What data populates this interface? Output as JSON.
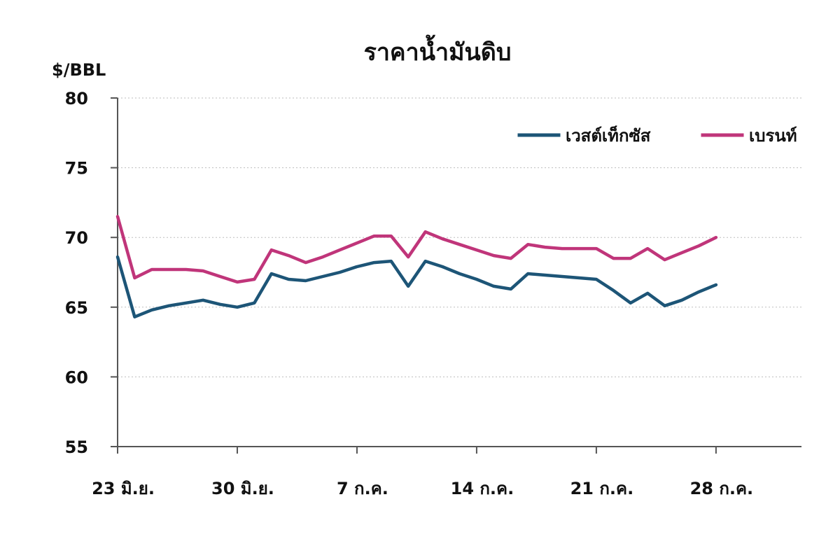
{
  "chart_data": {
    "type": "line",
    "title": "ราคาน้ำมันดิบ",
    "ylabel": "$/BBL",
    "ylim": [
      55,
      80
    ],
    "yticks": [
      55,
      60,
      65,
      70,
      75,
      80
    ],
    "x_range": [
      "2018-06-23",
      "2018-08-02"
    ],
    "xticks": [
      {
        "date": "2018-06-23",
        "label": "23 มิ.ย."
      },
      {
        "date": "2018-06-30",
        "label": "30 มิ.ย."
      },
      {
        "date": "2018-07-07",
        "label": "7 ก.ค."
      },
      {
        "date": "2018-07-14",
        "label": "14 ก.ค."
      },
      {
        "date": "2018-07-21",
        "label": "21 ก.ค."
      },
      {
        "date": "2018-07-28",
        "label": "28 ก.ค."
      }
    ],
    "grid": "horizontal",
    "legend_position": "top-right",
    "series": [
      {
        "name": "เวสต์เท็กซัส",
        "color": "#1d5577",
        "points": [
          {
            "x": "2018-06-23",
            "y": 68.6
          },
          {
            "x": "2018-06-24",
            "y": 64.3
          },
          {
            "x": "2018-06-25",
            "y": 64.8
          },
          {
            "x": "2018-06-26",
            "y": 65.1
          },
          {
            "x": "2018-06-27",
            "y": 65.3
          },
          {
            "x": "2018-06-28",
            "y": 65.5
          },
          {
            "x": "2018-06-29",
            "y": 65.2
          },
          {
            "x": "2018-06-30",
            "y": 65.0
          },
          {
            "x": "2018-07-01",
            "y": 65.3
          },
          {
            "x": "2018-07-02",
            "y": 67.4
          },
          {
            "x": "2018-07-03",
            "y": 67.0
          },
          {
            "x": "2018-07-04",
            "y": 66.9
          },
          {
            "x": "2018-07-05",
            "y": 67.2
          },
          {
            "x": "2018-07-06",
            "y": 67.5
          },
          {
            "x": "2018-07-07",
            "y": 67.9
          },
          {
            "x": "2018-07-08",
            "y": 68.2
          },
          {
            "x": "2018-07-09",
            "y": 68.3
          },
          {
            "x": "2018-07-10",
            "y": 66.5
          },
          {
            "x": "2018-07-11",
            "y": 68.3
          },
          {
            "x": "2018-07-12",
            "y": 67.9
          },
          {
            "x": "2018-07-13",
            "y": 67.4
          },
          {
            "x": "2018-07-14",
            "y": 67.0
          },
          {
            "x": "2018-07-15",
            "y": 66.5
          },
          {
            "x": "2018-07-16",
            "y": 66.3
          },
          {
            "x": "2018-07-17",
            "y": 67.4
          },
          {
            "x": "2018-07-18",
            "y": 67.3
          },
          {
            "x": "2018-07-19",
            "y": 67.2
          },
          {
            "x": "2018-07-20",
            "y": 67.1
          },
          {
            "x": "2018-07-21",
            "y": 67.0
          },
          {
            "x": "2018-07-22",
            "y": 66.2
          },
          {
            "x": "2018-07-23",
            "y": 65.3
          },
          {
            "x": "2018-07-24",
            "y": 66.0
          },
          {
            "x": "2018-07-25",
            "y": 65.1
          },
          {
            "x": "2018-07-26",
            "y": 65.5
          },
          {
            "x": "2018-07-27",
            "y": 66.1
          },
          {
            "x": "2018-07-28",
            "y": 66.6
          }
        ]
      },
      {
        "name": "เบรนท์",
        "color": "#c0357a",
        "points": [
          {
            "x": "2018-06-23",
            "y": 71.5
          },
          {
            "x": "2018-06-24",
            "y": 67.1
          },
          {
            "x": "2018-06-25",
            "y": 67.7
          },
          {
            "x": "2018-06-26",
            "y": 67.7
          },
          {
            "x": "2018-06-27",
            "y": 67.7
          },
          {
            "x": "2018-06-28",
            "y": 67.6
          },
          {
            "x": "2018-06-29",
            "y": 67.2
          },
          {
            "x": "2018-06-30",
            "y": 66.8
          },
          {
            "x": "2018-07-01",
            "y": 67.0
          },
          {
            "x": "2018-07-02",
            "y": 69.1
          },
          {
            "x": "2018-07-03",
            "y": 68.7
          },
          {
            "x": "2018-07-04",
            "y": 68.2
          },
          {
            "x": "2018-07-05",
            "y": 68.6
          },
          {
            "x": "2018-07-06",
            "y": 69.1
          },
          {
            "x": "2018-07-07",
            "y": 69.6
          },
          {
            "x": "2018-07-08",
            "y": 70.1
          },
          {
            "x": "2018-07-09",
            "y": 70.1
          },
          {
            "x": "2018-07-10",
            "y": 68.6
          },
          {
            "x": "2018-07-11",
            "y": 70.4
          },
          {
            "x": "2018-07-12",
            "y": 69.9
          },
          {
            "x": "2018-07-13",
            "y": 69.5
          },
          {
            "x": "2018-07-14",
            "y": 69.1
          },
          {
            "x": "2018-07-15",
            "y": 68.7
          },
          {
            "x": "2018-07-16",
            "y": 68.5
          },
          {
            "x": "2018-07-17",
            "y": 69.5
          },
          {
            "x": "2018-07-18",
            "y": 69.3
          },
          {
            "x": "2018-07-19",
            "y": 69.2
          },
          {
            "x": "2018-07-20",
            "y": 69.2
          },
          {
            "x": "2018-07-21",
            "y": 69.2
          },
          {
            "x": "2018-07-22",
            "y": 68.5
          },
          {
            "x": "2018-07-23",
            "y": 68.5
          },
          {
            "x": "2018-07-24",
            "y": 69.2
          },
          {
            "x": "2018-07-25",
            "y": 68.4
          },
          {
            "x": "2018-07-26",
            "y": 68.9
          },
          {
            "x": "2018-07-27",
            "y": 69.4
          },
          {
            "x": "2018-07-28",
            "y": 70.0
          }
        ]
      }
    ]
  }
}
